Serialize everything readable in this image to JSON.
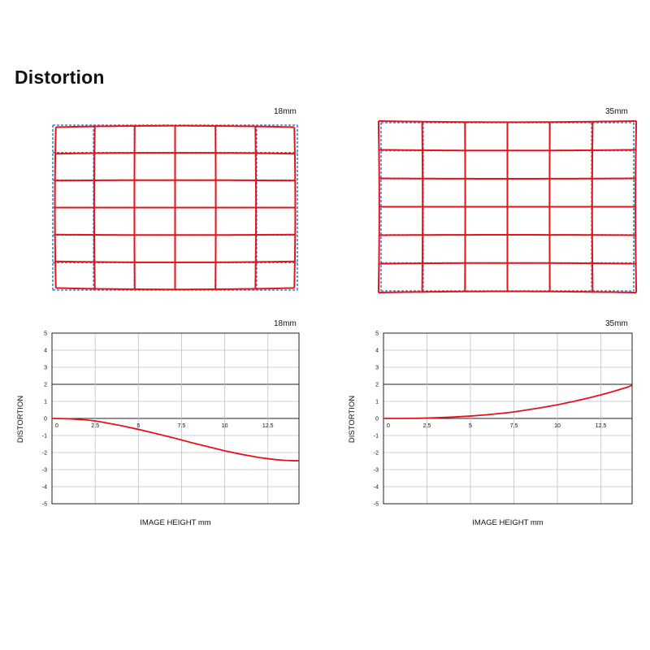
{
  "page": {
    "title": "Distortion"
  },
  "colors": {
    "distorted": "#e3141c",
    "ideal": "#3a86d4",
    "grid": "#b9c3c9",
    "frame": "#222222"
  },
  "grids": [
    {
      "label": "18mm",
      "type": "barrel",
      "cols": 6,
      "rows": 6,
      "distortion_percent_at_corner": -2.5
    },
    {
      "label": "35mm",
      "type": "pincushion",
      "cols": 6,
      "rows": 6,
      "distortion_percent_at_corner": 2.0
    }
  ],
  "chart_data": [
    {
      "type": "line",
      "label": "18mm",
      "xlabel": "IMAGE HEIGHT  mm",
      "ylabel": "DISTORTION",
      "xlim": [
        0,
        14.3
      ],
      "ylim": [
        -5,
        5
      ],
      "xticks": [
        "0",
        "2.5",
        "5",
        "7.5",
        "10",
        "12.5"
      ],
      "yticks": [
        "5",
        "4",
        "3",
        "2",
        "1",
        "0",
        "-1",
        "-2",
        "-3",
        "-4",
        "-5"
      ],
      "series": [
        {
          "x": [
            0,
            1,
            2,
            2.5,
            3,
            4,
            5,
            6,
            7,
            7.5,
            8,
            9,
            10,
            11,
            12,
            12.5,
            13,
            13.5,
            14,
            14.3
          ],
          "y": [
            0,
            -0.02,
            -0.09,
            -0.15,
            -0.23,
            -0.42,
            -0.64,
            -0.88,
            -1.13,
            -1.26,
            -1.4,
            -1.65,
            -1.9,
            -2.11,
            -2.29,
            -2.36,
            -2.42,
            -2.46,
            -2.48,
            -2.48
          ]
        }
      ]
    },
    {
      "type": "line",
      "label": "35mm",
      "xlabel": "IMAGE HEIGHT  mm",
      "ylabel": "DISTORTION",
      "xlim": [
        0,
        14.3
      ],
      "ylim": [
        -5,
        5
      ],
      "xticks": [
        "0",
        "2.5",
        "5",
        "7.5",
        "10",
        "12.5"
      ],
      "yticks": [
        "5",
        "4",
        "3",
        "2",
        "1",
        "0",
        "-1",
        "-2",
        "-3",
        "-4",
        "-5"
      ],
      "series": [
        {
          "x": [
            0,
            1,
            2,
            2.5,
            3,
            4,
            5,
            6,
            7,
            7.5,
            8,
            9,
            10,
            11,
            12,
            12.5,
            13,
            14,
            14.3
          ],
          "y": [
            0,
            0.0,
            0.01,
            0.02,
            0.04,
            0.08,
            0.14,
            0.22,
            0.32,
            0.38,
            0.46,
            0.62,
            0.8,
            1.01,
            1.25,
            1.38,
            1.52,
            1.82,
            1.95
          ]
        }
      ]
    }
  ]
}
